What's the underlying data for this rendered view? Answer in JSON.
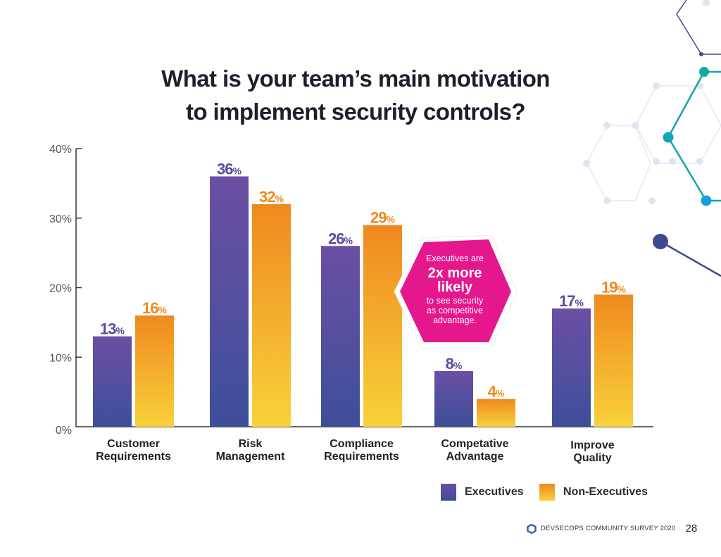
{
  "page": {
    "footer_text": "DEVSECOPS COMMUNITY SURVEY 2020",
    "page_number": "28",
    "logo_icon": "hexagon-logo-icon"
  },
  "callout": {
    "line1": "Executives are",
    "line2": "2x more",
    "line3": "likely",
    "line4": "to see security",
    "line5": "as competitive",
    "line6": "advantage.",
    "color": "#e5178c"
  },
  "colors": {
    "executives_top": "#6b4fa3",
    "executives_bottom": "#3d4f9a",
    "non_executives_top": "#f0891f",
    "non_executives_bottom": "#f7d23b",
    "executives_label": "#5b4a9e",
    "non_executives_label": "#ef8a1f"
  },
  "chart_data": {
    "type": "bar",
    "title_lines": [
      "What is your team’s main motivation",
      "to implement security controls?"
    ],
    "categories": [
      [
        "Customer",
        "Requirements"
      ],
      [
        "Risk",
        "Management"
      ],
      [
        "Compliance",
        "Requirements"
      ],
      [
        "Competative",
        "Advantage"
      ],
      [
        "Improve",
        "Quality"
      ]
    ],
    "series": [
      {
        "name": "Executives",
        "values": [
          13,
          36,
          26,
          8,
          17
        ]
      },
      {
        "name": "Non-Executives",
        "values": [
          16,
          32,
          29,
          4,
          19
        ]
      }
    ],
    "ylim": [
      0,
      40
    ],
    "yticks": [
      "0%",
      "10%",
      "20%",
      "30%",
      "40%"
    ],
    "ytick_values": [
      0,
      10,
      20,
      30,
      40
    ],
    "value_suffix": "%",
    "xlabel": "",
    "ylabel": "",
    "grid": false,
    "legend_position": "bottom-right"
  }
}
